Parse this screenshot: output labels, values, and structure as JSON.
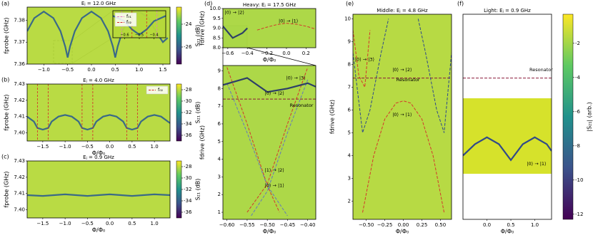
{
  "chart_data": [
    {
      "type": "heatmap",
      "label": "(a)",
      "title": "Eⱼ = 12.0 GHz",
      "xlabel": "",
      "ylabel": "fprobe (GHz)",
      "bg_color": "#b5d93a",
      "xlim": [
        -1.35,
        1.65
      ],
      "ylim": [
        7.36,
        7.386
      ],
      "xticks": [
        {
          "value": -1.0,
          "label": "−1.0"
        },
        {
          "value": -0.5,
          "label": "−0.5"
        },
        {
          "value": 0.0,
          "label": "0.0"
        },
        {
          "value": 0.5,
          "label": "0.5"
        },
        {
          "value": 1.0,
          "label": "1.0"
        },
        1.5
      ],
      "yticks": [
        7.36,
        7.37,
        7.38
      ],
      "curves": [
        {
          "color": "#2c5d8f",
          "dashed": false,
          "x": [
            -1.35,
            -1.2,
            -1.0,
            -0.8,
            -0.65,
            -0.55,
            -0.5,
            -0.45,
            -0.35,
            -0.2,
            0,
            0.2,
            0.35,
            0.45,
            0.5,
            0.55,
            0.65,
            0.8,
            1.0,
            1.2,
            1.35,
            1.5,
            1.6
          ],
          "y": [
            7.375,
            7.381,
            7.384,
            7.381,
            7.375,
            7.368,
            7.363,
            7.368,
            7.375,
            7.381,
            7.384,
            7.381,
            7.375,
            7.368,
            7.363,
            7.368,
            7.375,
            7.381,
            7.384,
            7.381,
            7.375,
            7.37,
            7.372
          ]
        }
      ],
      "colorbar": {
        "label": "S₂₁ (dB)",
        "lim": [
          -27.5,
          -22.5
        ],
        "ticks": [
          -24,
          -26
        ],
        "colors": [
          "#440154",
          "#3b528b",
          "#21918c",
          "#5ec962",
          "#fde725"
        ]
      }
    },
    {
      "type": "heatmap",
      "label": "(b)",
      "title": "Eⱼ = 4.0 GHz",
      "xlabel": "Φ/Φ₀",
      "ylabel": "fprobe (GHz)",
      "bg_color": "#b5d93a",
      "xlim": [
        -1.85,
        1.35
      ],
      "ylim": [
        7.395,
        7.43
      ],
      "xticks": [
        {
          "value": -1.5,
          "label": "−1.5"
        },
        {
          "value": -1.0,
          "label": "−1.0"
        },
        {
          "value": -0.5,
          "label": "−0.5"
        },
        {
          "value": 0.0,
          "label": "0.0"
        },
        {
          "value": 0.5,
          "label": "0.5"
        },
        {
          "value": 1.0,
          "label": "1.0"
        }
      ],
      "yticks": [
        {
          "value": 7.4,
          "label": "7.40"
        },
        7.41,
        7.42,
        7.43
      ],
      "legend": "upper right",
      "series": [
        {
          "name": "f₀₂",
          "color": "#d62728",
          "vlines": [
            -1.62,
            -1.38,
            -0.62,
            -0.38,
            0.38,
            0.62
          ]
        }
      ],
      "curves": [
        {
          "color": "#2c5d8f",
          "dashed": false,
          "x": [
            -1.85,
            -1.7,
            -1.62,
            -1.5,
            -1.38,
            -1.3,
            -1.15,
            -1.0,
            -0.85,
            -0.7,
            -0.62,
            -0.5,
            -0.38,
            -0.3,
            -0.15,
            0,
            0.15,
            0.3,
            0.38,
            0.5,
            0.62,
            0.7,
            0.85,
            1.0,
            1.15,
            1.3,
            1.35
          ],
          "y": [
            7.41,
            7.407,
            7.403,
            7.402,
            7.403,
            7.407,
            7.41,
            7.411,
            7.41,
            7.407,
            7.403,
            7.402,
            7.403,
            7.407,
            7.41,
            7.411,
            7.41,
            7.407,
            7.403,
            7.402,
            7.403,
            7.407,
            7.41,
            7.411,
            7.41,
            7.407,
            7.406
          ]
        }
      ],
      "colorbar": {
        "label": "S₂₁ (dB)",
        "lim": [
          -37,
          -27
        ],
        "ticks": [
          -28,
          -30,
          -32,
          -34,
          -36
        ],
        "colors": [
          "#440154",
          "#3b528b",
          "#21918c",
          "#5ec962",
          "#fde725"
        ]
      }
    },
    {
      "type": "heatmap",
      "label": "(c)",
      "title": "Eⱼ = 0.9 GHz",
      "xlabel": "Φ/Φ₀",
      "ylabel": "fprobe (GHz)",
      "bg_color": "#b5d93a",
      "xlim": [
        -1.85,
        1.35
      ],
      "ylim": [
        7.395,
        7.43
      ],
      "xticks": [
        {
          "value": -1.5,
          "label": "−1.5"
        },
        {
          "value": -1.0,
          "label": "−1.0"
        },
        {
          "value": -0.5,
          "label": "−0.5"
        },
        {
          "value": 0.0,
          "label": "0.0"
        },
        {
          "value": 0.5,
          "label": "0.5"
        },
        {
          "value": 1.0,
          "label": "1.0"
        }
      ],
      "yticks": [
        {
          "value": 7.4,
          "label": "7.40"
        },
        7.41,
        7.42,
        7.43
      ],
      "curves": [
        {
          "color": "#2c5d8f",
          "dashed": false,
          "x": [
            -1.85,
            -1.5,
            -1.0,
            -0.5,
            0,
            0.5,
            1.0,
            1.35
          ],
          "y": [
            7.409,
            7.4085,
            7.4095,
            7.4085,
            7.4095,
            7.4085,
            7.4095,
            7.409
          ]
        }
      ],
      "colorbar": {
        "label": "S₂₁ (dB)",
        "lim": [
          -37,
          -27
        ],
        "ticks": [
          -28,
          -30,
          -32,
          -34,
          -36
        ],
        "colors": [
          "#440154",
          "#3b528b",
          "#21918c",
          "#5ec962",
          "#fde725"
        ]
      }
    },
    {
      "type": "heatmap",
      "label": "(d)",
      "title": "Heavy: Eⱼ = 17.5 GHz",
      "xlabel": "Φ/Φ₀",
      "ylabel": "fdrive (GHz)",
      "bg_color": "#a9d63e",
      "xlim": [
        -0.65,
        0.3
      ],
      "ylim": [
        8.0,
        10.0
      ],
      "xticks": [
        {
          "value": -0.6,
          "label": "−0.6"
        },
        {
          "value": -0.4,
          "label": "−0.4"
        },
        {
          "value": -0.2,
          "label": "−0.2"
        },
        {
          "value": 0.0,
          "label": "0.0"
        },
        0.2
      ],
      "yticks": [
        {
          "value": 8.0,
          "label": "8.0"
        },
        8.5,
        {
          "value": 9.0,
          "label": "9.0"
        },
        9.5,
        {
          "value": 10.0,
          "label": "10.0"
        }
      ],
      "annotations": [
        {
          "text": "|0⟩ → |2⟩",
          "color": "#000000"
        },
        {
          "text": "|0⟩ → |1⟩",
          "color": "#d62728"
        }
      ],
      "curves": [
        {
          "color": "#d62728",
          "dashed": true,
          "x": [
            -0.3,
            -0.2,
            -0.1,
            0,
            0.1,
            0.2,
            0.3
          ],
          "y": [
            8.9,
            9.05,
            9.18,
            9.25,
            9.2,
            9.1,
            8.95
          ]
        },
        {
          "color": "#1f2f6b",
          "dashed": false,
          "x": [
            -0.65,
            -0.55,
            -0.45,
            -0.4
          ],
          "y": [
            9.1,
            8.5,
            8.75,
            9.0
          ]
        }
      ]
    },
    {
      "type": "heatmap",
      "xlabel": "Φ/Φ₀",
      "ylabel": "fdrive (GHz)",
      "bg_color": "#a9d63e",
      "xlim": [
        -0.61,
        -0.38
      ],
      "ylim": [
        0.6,
        9.3
      ],
      "xticks": [
        {
          "value": -0.6,
          "label": "−0.60"
        },
        {
          "value": -0.55,
          "label": "−0.55"
        },
        {
          "value": -0.5,
          "label": "−0.50"
        },
        {
          "value": -0.45,
          "label": "−0.45"
        },
        {
          "value": -0.4,
          "label": "−0.40"
        }
      ],
      "yticks": [
        1,
        2,
        3,
        4,
        5,
        6,
        7,
        8,
        9
      ],
      "hlines": [
        {
          "value": 7.4,
          "color": "#8b1a3a"
        }
      ],
      "annotations": [
        {
          "text": "|0⟩ → |3⟩",
          "color": "#000000"
        },
        {
          "text": "|0⟩ → |2⟩",
          "color": "#3b3b8f"
        },
        {
          "text": "Resonator",
          "color": "#d62728"
        },
        {
          "text": "|1⟩ → |2⟩",
          "color": "#6a5acd"
        },
        {
          "text": "|0⟩ → |1⟩",
          "color": "#d62728"
        }
      ],
      "curves": [
        {
          "color": "#d62728",
          "dashed": true,
          "x": [
            -0.6,
            -0.55,
            -0.5,
            -0.47
          ],
          "y": [
            9.2,
            6.0,
            2.5,
            1.0
          ]
        },
        {
          "color": "#d62728",
          "dashed": true,
          "x": [
            -0.55,
            -0.5,
            -0.45,
            -0.4
          ],
          "y": [
            1.0,
            2.6,
            6.0,
            9.2
          ]
        },
        {
          "color": "#5b6fc9",
          "dashed": true,
          "x": [
            -0.6,
            -0.55,
            -0.5,
            -0.45
          ],
          "y": [
            8.3,
            5.5,
            2.5,
            0.8
          ]
        },
        {
          "color": "#5b6fc9",
          "dashed": true,
          "x": [
            -0.54,
            -0.5,
            -0.45,
            -0.4
          ],
          "y": [
            0.8,
            2.2,
            5.5,
            8.5
          ]
        },
        {
          "color": "#1f2f6b",
          "dashed": false,
          "x": [
            -0.61,
            -0.55,
            -0.5,
            -0.45,
            -0.4,
            -0.38
          ],
          "y": [
            8.2,
            8.6,
            7.8,
            8.0,
            8.3,
            8.1
          ]
        }
      ]
    },
    {
      "type": "heatmap",
      "label": "(e)",
      "title": "Middle: Eⱼ = 4.8 GHz",
      "xlabel": "Φ/Φ₀",
      "ylabel": "fdrive (GHz)",
      "bg_color": "#b3d83a",
      "xlim": [
        -0.68,
        0.65
      ],
      "ylim": [
        1.2,
        10.2
      ],
      "xticks": [
        {
          "value": -0.5,
          "label": "−0.50"
        },
        {
          "value": -0.25,
          "label": "−0.25"
        },
        {
          "value": 0.0,
          "label": "0.00"
        },
        {
          "value": 0.25,
          "label": "0.25"
        },
        {
          "value": 0.5,
          "label": "0.50"
        }
      ],
      "yticks": [
        2,
        3,
        4,
        5,
        6,
        7,
        8,
        9,
        10
      ],
      "hlines": [
        {
          "value": 7.4,
          "color": "#8b1a3a"
        }
      ],
      "annotations": [
        {
          "text": "|0⟩ → |3⟩",
          "color": "#d62728"
        },
        {
          "text": "|0⟩ → |2⟩",
          "color": "#000000"
        },
        {
          "text": "Resonator",
          "color": "#d62728"
        },
        {
          "text": "|0⟩ → |1⟩",
          "color": "#d62728"
        }
      ],
      "curves": [
        {
          "color": "#d62728",
          "dashed": true,
          "x": [
            -0.55,
            -0.4,
            -0.25,
            -0.1,
            0,
            0.1,
            0.25,
            0.4,
            0.55
          ],
          "y": [
            1.5,
            4.0,
            5.6,
            6.3,
            6.4,
            6.3,
            5.6,
            4.0,
            1.5
          ]
        },
        {
          "color": "#1f3a93",
          "dashed": true,
          "x": [
            -0.68,
            -0.55,
            -0.45,
            -0.3,
            -0.2
          ],
          "y": [
            8.5,
            5.0,
            6.0,
            8.5,
            10.0
          ]
        },
        {
          "color": "#1f3a93",
          "dashed": true,
          "x": [
            0.2,
            0.3,
            0.45,
            0.55,
            0.65
          ],
          "y": [
            10.0,
            8.5,
            6.0,
            5.0,
            8.5
          ]
        },
        {
          "color": "#d62728",
          "dashed": true,
          "x": [
            -0.68,
            -0.6,
            -0.52,
            -0.45
          ],
          "y": [
            9.5,
            7.5,
            7.0,
            9.5
          ]
        }
      ]
    },
    {
      "type": "heatmap",
      "label": "(f)",
      "title": "Light: Eⱼ = 0.9 GHz",
      "xlabel": "Φ/Φ₀",
      "ylabel": "",
      "bg_color": "#ffffff",
      "xlim": [
        -0.5,
        1.35
      ],
      "ylim": [
        1.2,
        10.2
      ],
      "xticks": [
        {
          "value": 0.0,
          "label": "0.0"
        },
        0.5,
        {
          "value": 1.0,
          "label": "1.0"
        }
      ],
      "yticks": [],
      "hlines": [
        {
          "value": 7.4,
          "color": "#8b1a3a"
        }
      ],
      "annotations": [
        {
          "text": "Resonator",
          "color": "#8b1a3a"
        },
        {
          "text": "|0⟩ → |1⟩",
          "color": "#d62728"
        }
      ],
      "curves": [
        {
          "color": "#1f3a93",
          "dashed": false,
          "x": [
            -0.5,
            -0.25,
            0,
            0.25,
            0.5,
            0.75,
            1.0,
            1.25,
            1.35
          ],
          "y": [
            4.0,
            4.5,
            4.8,
            4.5,
            3.8,
            4.5,
            4.8,
            4.5,
            4.2
          ]
        }
      ],
      "colorbar": {
        "label": "|S₂₁| (arb.)",
        "lim": [
          -12.3,
          -0.3
        ],
        "ticks": [
          -2,
          -4,
          -6,
          -8,
          -10,
          -12
        ],
        "colors": [
          "#440154",
          "#3b528b",
          "#21918c",
          "#5ec962",
          "#fde725"
        ]
      }
    },
    {
      "type": "heatmap",
      "bg_color": "#b5d93a",
      "xlim": [
        -0.68,
        -0.32
      ],
      "ylim": [
        7.36,
        7.386
      ],
      "xticks": [
        {
          "value": -0.6,
          "label": "−0.6"
        },
        {
          "value": -0.5,
          "label": "−0.5"
        },
        {
          "value": -0.4,
          "label": "−0.4"
        }
      ],
      "yticks": [],
      "legend": "upper left",
      "series": [
        {
          "name": "f₀₁",
          "color": "#e377c2",
          "vlines": [
            -0.62,
            -0.38
          ]
        },
        {
          "name": "f₀₂",
          "color": "#d62728",
          "vlines": [
            -0.55,
            -0.45
          ]
        }
      ],
      "curves": [
        {
          "color": "#2c5d8f",
          "dashed": false,
          "x": [
            -0.68,
            -0.6,
            -0.55,
            -0.5,
            -0.45,
            -0.4,
            -0.32
          ],
          "y": [
            7.381,
            7.376,
            7.368,
            7.363,
            7.368,
            7.376,
            7.381
          ]
        }
      ]
    }
  ]
}
